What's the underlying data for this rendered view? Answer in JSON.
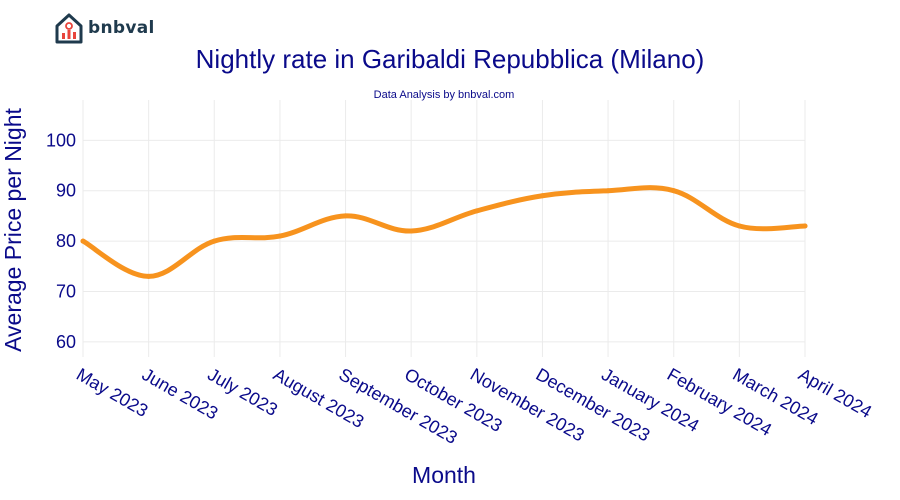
{
  "brand": {
    "name": "bnbval"
  },
  "chart_data": {
    "type": "line",
    "title": "Nightly rate in Garibaldi Repubblica (Milano)",
    "subtitle": "Data Analysis by bnbval.com",
    "xlabel": "Month",
    "ylabel": "Average Price per Night",
    "categories": [
      "May 2023",
      "June 2023",
      "July 2023",
      "August 2023",
      "September 2023",
      "October 2023",
      "November 2023",
      "December 2023",
      "January 2024",
      "February 2024",
      "March 2024",
      "April 2024"
    ],
    "series": [
      {
        "values": [
          80,
          73,
          80,
          81,
          85,
          82,
          86,
          89,
          90,
          90,
          83,
          83
        ],
        "color": "#f7931e"
      }
    ],
    "yticks": [
      60,
      70,
      80,
      90,
      100
    ],
    "ylim": [
      57,
      108
    ],
    "grid": true,
    "legend": "none"
  }
}
